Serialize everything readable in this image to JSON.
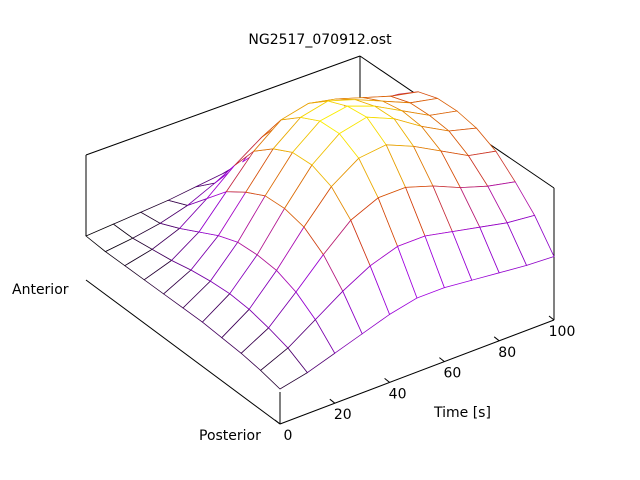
{
  "chart_data": {
    "type": "surface",
    "title": "NG2517_070912.ost",
    "xlabel": "Time [s]",
    "xlim": [
      0,
      100
    ],
    "x_ticks": [
      "0",
      "20",
      "40",
      "60",
      "80",
      "100"
    ],
    "y_axis_labels": [
      "Anterior",
      "Posterior"
    ],
    "grid": false,
    "colormap": [
      "#000000",
      "#7a00aa",
      "#a000e0",
      "#d23c0a",
      "#e8a000",
      "#ffff00"
    ],
    "x": [
      0,
      10,
      20,
      30,
      40,
      50,
      60,
      70,
      80,
      90,
      100
    ],
    "y": [
      0,
      0.1,
      0.2,
      0.3,
      0.4,
      0.5,
      0.6,
      0.7,
      0.8,
      0.9,
      1.0
    ],
    "z": [
      [
        0.0,
        0.01,
        0.02,
        0.03,
        0.05,
        0.07,
        0.09,
        0.1,
        0.1,
        0.09,
        0.09
      ],
      [
        0.0,
        0.02,
        0.05,
        0.1,
        0.18,
        0.25,
        0.3,
        0.3,
        0.28,
        0.26,
        0.25
      ],
      [
        0.01,
        0.05,
        0.12,
        0.25,
        0.4,
        0.52,
        0.58,
        0.56,
        0.52,
        0.48,
        0.46
      ],
      [
        0.02,
        0.08,
        0.2,
        0.4,
        0.6,
        0.74,
        0.78,
        0.74,
        0.68,
        0.62,
        0.58
      ],
      [
        0.03,
        0.12,
        0.28,
        0.5,
        0.72,
        0.86,
        0.9,
        0.84,
        0.76,
        0.68,
        0.64
      ],
      [
        0.04,
        0.15,
        0.34,
        0.58,
        0.8,
        0.94,
        0.97,
        0.9,
        0.8,
        0.7,
        0.66
      ],
      [
        0.05,
        0.17,
        0.36,
        0.6,
        0.82,
        0.96,
        1.0,
        0.92,
        0.8,
        0.7,
        0.65
      ],
      [
        0.05,
        0.17,
        0.36,
        0.58,
        0.78,
        0.9,
        0.92,
        0.84,
        0.74,
        0.64,
        0.6
      ],
      [
        0.05,
        0.15,
        0.32,
        0.5,
        0.66,
        0.74,
        0.74,
        0.68,
        0.6,
        0.54,
        0.5
      ],
      [
        0.04,
        0.12,
        0.24,
        0.36,
        0.46,
        0.52,
        0.52,
        0.48,
        0.44,
        0.4,
        0.38
      ],
      [
        0.02,
        0.06,
        0.12,
        0.18,
        0.24,
        0.28,
        0.28,
        0.26,
        0.24,
        0.22,
        0.21
      ]
    ]
  }
}
